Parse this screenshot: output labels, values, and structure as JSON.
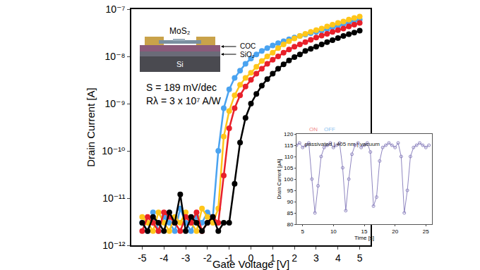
{
  "chart_data": [
    {
      "type": "line",
      "xlabel": "Gate Voltage [V]",
      "ylabel": "Drain Current [A]",
      "log": "y",
      "grid": false,
      "marker": "circle",
      "x": [
        -5,
        -4.75,
        -4.5,
        -4.25,
        -4,
        -3.75,
        -3.5,
        -3.25,
        -3,
        -2.75,
        -2.5,
        -2.25,
        -2,
        -1.75,
        -1.5,
        -1.25,
        -1,
        -0.75,
        -0.5,
        -0.25,
        0,
        0.25,
        0.5,
        0.75,
        1,
        1.25,
        1.5,
        1.75,
        2,
        2.25,
        2.5,
        2.75,
        3,
        3.25,
        3.5,
        3.75,
        4,
        4.25,
        4.5,
        4.75,
        5
      ],
      "series": [
        {
          "color": "#4aa3f0",
          "values": [
            3e-12,
            2e-12,
            5e-12,
            2e-12,
            4e-12,
            3e-12,
            2e-12,
            6e-12,
            3e-12,
            2e-12,
            4e-12,
            3e-12,
            5e-12,
            4e-12,
            1e-10,
            8e-10,
            2e-09,
            3.5e-09,
            5e-09,
            7e-09,
            9e-09,
            1.1e-08,
            1.3e-08,
            1.5e-08,
            1.7e-08,
            1.9e-08,
            2.1e-08,
            2.3e-08,
            2.5e-08,
            2.7e-08,
            2.9e-08,
            3.1e-08,
            3.3e-08,
            3.5e-08,
            3.8e-08,
            4.1e-08,
            4.4e-08,
            4.8e-08,
            5.2e-08,
            5.6e-08,
            6e-08
          ]
        },
        {
          "color": "#ffc61a",
          "values": [
            4e-12,
            3e-12,
            2e-12,
            5e-12,
            3e-12,
            2e-12,
            4e-12,
            3e-12,
            5e-12,
            3e-12,
            2e-12,
            6e-12,
            4e-12,
            3e-12,
            6e-12,
            2e-10,
            7e-10,
            1.5e-09,
            2.5e-09,
            3.5e-09,
            4.5e-09,
            6e-09,
            8e-09,
            1e-08,
            1.2e-08,
            1.5e-08,
            1.8e-08,
            2.1e-08,
            2.4e-08,
            2.7e-08,
            3e-08,
            3.3e-08,
            3.6e-08,
            3.9e-08,
            4.3e-08,
            4.7e-08,
            5.1e-08,
            5.5e-08,
            6e-08,
            6.5e-08,
            7e-08
          ]
        },
        {
          "color": "#e8202a",
          "values": [
            2e-12,
            4e-12,
            3e-12,
            2e-12,
            5e-12,
            4e-12,
            3e-12,
            2e-12,
            4e-12,
            3e-12,
            5e-12,
            2e-12,
            3e-12,
            4e-12,
            3e-12,
            3e-11,
            3e-10,
            8e-10,
            1.5e-09,
            2.3e-09,
            3.2e-09,
            4.3e-09,
            5.5e-09,
            7e-09,
            8.5e-09,
            1e-08,
            1.2e-08,
            1.4e-08,
            1.6e-08,
            1.8e-08,
            2e-08,
            2.25e-08,
            2.5e-08,
            2.75e-08,
            3e-08,
            3.3e-08,
            3.6e-08,
            3.9e-08,
            4.3e-08,
            4.7e-08,
            5.1e-08
          ]
        },
        {
          "color": "#000000",
          "values": [
            3e-12,
            2e-12,
            4e-12,
            3e-12,
            2e-12,
            5e-12,
            3e-12,
            1.2e-11,
            2e-12,
            4e-12,
            3e-12,
            2e-12,
            3e-12,
            4e-12,
            2e-12,
            3e-12,
            3e-12,
            2e-11,
            1.5e-10,
            5e-10,
            1e-09,
            1.6e-09,
            2.4e-09,
            3.3e-09,
            4.3e-09,
            5.5e-09,
            6.8e-09,
            8.2e-09,
            9.7e-09,
            1.1e-08,
            1.3e-08,
            1.45e-08,
            1.6e-08,
            1.8e-08,
            2e-08,
            2.2e-08,
            2.45e-08,
            2.7e-08,
            2.95e-08,
            3.2e-08,
            3.5e-08
          ]
        }
      ],
      "xlim": [
        -5.5,
        5.5
      ],
      "xticks": [
        -5,
        -4,
        -3,
        -2,
        -1,
        0,
        1,
        2,
        3,
        4,
        5
      ],
      "ylim": [
        1e-12,
        1e-07
      ],
      "yticks": [
        {
          "value": 1e-12,
          "label": "10⁻¹²"
        },
        {
          "value": 1e-11,
          "label": "10⁻¹¹"
        },
        {
          "value": 1e-10,
          "label": "10⁻¹⁰"
        },
        {
          "value": 1e-09,
          "label": "10⁻⁹"
        },
        {
          "value": 1e-08,
          "label": "10⁻⁸"
        },
        {
          "value": 1e-07,
          "label": "10⁻⁷"
        }
      ],
      "annotations": [
        "S = 189 mV/dec",
        "Rλ = 3 x 10⁷ A/W",
        "MoS₂",
        "COC",
        "SiO₂",
        "Si"
      ]
    },
    {
      "type": "line",
      "xlabel": "Time [s]",
      "ylabel": "Drain Current [μA]",
      "grid": false,
      "marker": "circle-open",
      "x": [
        4,
        4.5,
        5,
        5.5,
        6,
        6.5,
        7,
        7.5,
        8,
        8.5,
        9,
        9.5,
        10,
        10.5,
        11,
        11.5,
        12,
        12.5,
        13,
        13.5,
        14,
        14.5,
        15,
        15.5,
        16,
        16.5,
        17,
        17.5,
        18,
        18.5,
        19,
        19.5,
        20,
        20.5,
        21,
        21.5,
        22,
        22.5,
        23,
        23.5,
        24,
        24.5,
        25,
        25.5
      ],
      "series": [
        {
          "color": "#8f86c0",
          "values": [
            115,
            116,
            114,
            115,
            116,
            100,
            85,
            97,
            110,
            114,
            115,
            116,
            114,
            115,
            116,
            105,
            86,
            100,
            111,
            115,
            116,
            114,
            115,
            116,
            112,
            88,
            92,
            108,
            114,
            115,
            116,
            115,
            114,
            116,
            110,
            85,
            95,
            110,
            114,
            115,
            116,
            115,
            114,
            115
          ]
        }
      ],
      "xlim": [
        4,
        26
      ],
      "xticks": [
        5,
        10,
        15,
        20,
        25
      ],
      "ylim": [
        80,
        120
      ],
      "yticks": [
        80,
        85,
        90,
        95,
        100,
        105,
        110,
        115,
        120
      ],
      "regions": [
        {
          "label": "ON",
          "start": 6.3,
          "end": 7.3,
          "color": "#f08a8a"
        },
        {
          "label": "OFF",
          "start": 7.3,
          "end": 11.5,
          "color": "#8fc3ef"
        }
      ],
      "annotations": [
        "passivated | 405 nm | vacuum"
      ]
    }
  ]
}
